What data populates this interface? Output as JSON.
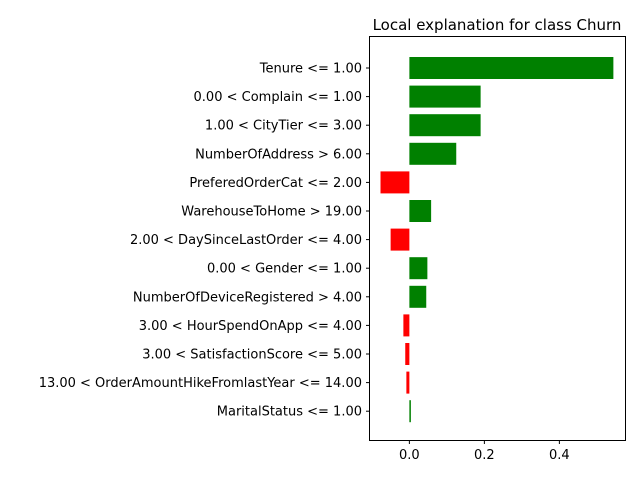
{
  "chart_data": {
    "type": "bar",
    "orientation": "horizontal",
    "title": "Local explanation for class Churn",
    "xlabel": "",
    "ylabel": "",
    "xlim": [
      -0.105,
      0.575
    ],
    "xticks": [
      0.0,
      0.2,
      0.4
    ],
    "xtick_labels": [
      "0.0",
      "0.2",
      "0.4"
    ],
    "grid": false,
    "positive_color": "#008000",
    "negative_color": "#ff0000",
    "categories": [
      "Tenure <= 1.00",
      "0.00 < Complain <= 1.00",
      "1.00 < CityTier <= 3.00",
      "NumberOfAddress > 6.00",
      "PreferedOrderCat <= 2.00",
      "WarehouseToHome > 19.00",
      "2.00 < DaySinceLastOrder <= 4.00",
      "0.00 < Gender <= 1.00",
      "NumberOfDeviceRegistered > 4.00",
      "3.00 < HourSpendOnApp <= 4.00",
      "3.00 < SatisfactionScore <= 5.00",
      "13.00 < OrderAmountHikeFromlastYear <= 14.00",
      "MaritalStatus <= 1.00"
    ],
    "values": [
      0.544,
      0.19,
      0.19,
      0.125,
      -0.077,
      0.058,
      -0.05,
      0.048,
      0.045,
      -0.016,
      -0.011,
      -0.008,
      0.004
    ]
  }
}
